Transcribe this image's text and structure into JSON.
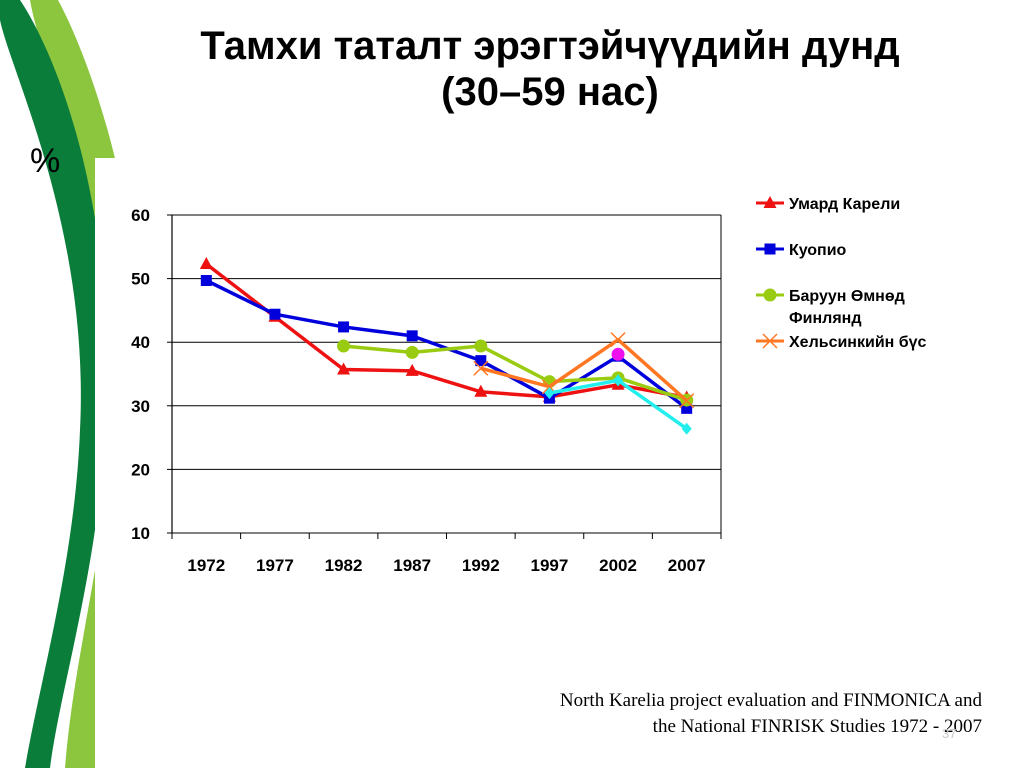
{
  "slide": {
    "title_line1": "Тамхи таталт эрэгтэйчүүдийн дунд",
    "title_line2": "(30–59 нас)",
    "unit": "%",
    "source_line1": "North Karelia project evaluation and FINMONICA and",
    "source_line2": "the National FINRISK Studies 1972 - 2007",
    "page_number": "37"
  },
  "colors": {
    "dark_green": "#0a7d3b",
    "light_green": "#8cc63e",
    "grid": "#000000"
  },
  "chart_data": {
    "type": "line",
    "categories": [
      "1972",
      "1977",
      "1982",
      "1987",
      "1992",
      "1997",
      "2002",
      "2007"
    ],
    "ylim": [
      10,
      60
    ],
    "yticks": [
      "10",
      "20",
      "30",
      "40",
      "50",
      "60"
    ],
    "grid": "horizontal",
    "legend_position": "right",
    "series": [
      {
        "name": "Умард Карели",
        "color": "#ee1111",
        "marker": "triangle",
        "values": [
          52.3,
          44.0,
          35.7,
          35.5,
          32.2,
          31.4,
          33.3,
          31.3
        ]
      },
      {
        "name": "Куопио",
        "color": "#0000dd",
        "marker": "square",
        "values": [
          49.7,
          44.4,
          42.4,
          41.0,
          37.1,
          31.2,
          37.8,
          29.6
        ]
      },
      {
        "name": "Баруун Өмнөд Финлянд",
        "color": "#99cc11",
        "marker": "circle",
        "values": [
          null,
          null,
          39.4,
          38.4,
          39.4,
          33.8,
          34.4,
          30.9
        ]
      },
      {
        "name": "Хельсинкийн бүс",
        "color": "#ff7722",
        "marker": "x",
        "values": [
          null,
          null,
          null,
          null,
          35.9,
          33.0,
          40.4,
          30.8
        ]
      },
      {
        "color": "#22eeee",
        "marker": "diamond",
        "values": [
          null,
          null,
          null,
          null,
          null,
          32.0,
          34.0,
          26.4
        ]
      }
    ],
    "extra_points": [
      {
        "color": "#ee11ee",
        "marker": "circle",
        "category": "2002",
        "value": 38.1
      }
    ]
  }
}
